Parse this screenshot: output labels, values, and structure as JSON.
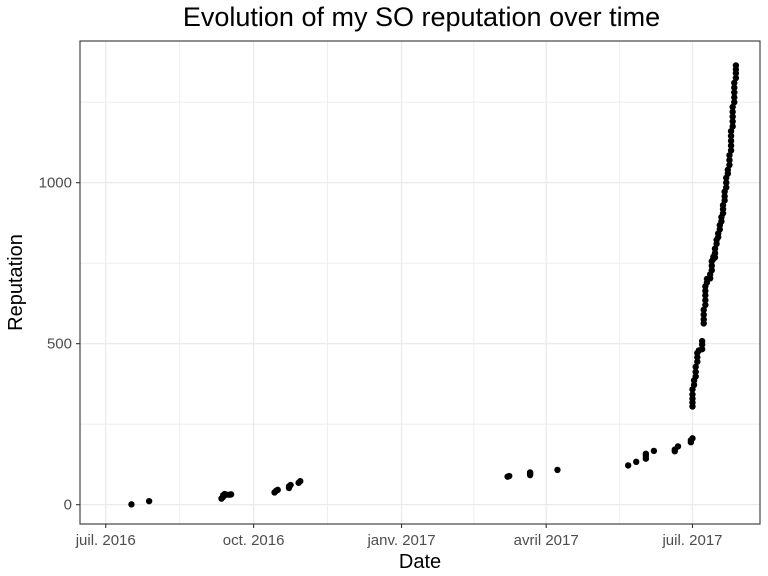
{
  "chart_data": {
    "type": "scatter",
    "title": "Evolution of my SO reputation over time",
    "xlabel": "Date",
    "ylabel": "Reputation",
    "x_axis_type": "date",
    "xlim": [
      "2016-06-15",
      "2017-08-12"
    ],
    "ylim": [
      -60,
      1440
    ],
    "x_ticks": [
      {
        "date": "2016-07-01",
        "label": "juil. 2016"
      },
      {
        "date": "2016-10-01",
        "label": "oct. 2016"
      },
      {
        "date": "2017-01-01",
        "label": "janv. 2017"
      },
      {
        "date": "2017-04-01",
        "label": "avril 2017"
      },
      {
        "date": "2017-07-01",
        "label": "juil. 2017"
      }
    ],
    "y_ticks": [
      {
        "value": 0,
        "label": "0"
      },
      {
        "value": 500,
        "label": "500"
      },
      {
        "value": 1000,
        "label": "1000"
      }
    ],
    "grid": true,
    "marker_color": "#000000",
    "grid_color": "#ebebeb",
    "points": [
      {
        "date": "2016-07-17",
        "y": 1
      },
      {
        "date": "2016-07-28",
        "y": 11
      },
      {
        "date": "2016-09-11",
        "y": 19
      },
      {
        "date": "2016-09-12",
        "y": 24
      },
      {
        "date": "2016-09-12",
        "y": 29
      },
      {
        "date": "2016-09-13",
        "y": 33
      },
      {
        "date": "2016-09-14",
        "y": 31
      },
      {
        "date": "2016-09-16",
        "y": 31
      },
      {
        "date": "2016-09-17",
        "y": 32
      },
      {
        "date": "2016-10-14",
        "y": 38
      },
      {
        "date": "2016-10-15",
        "y": 43
      },
      {
        "date": "2016-10-16",
        "y": 46
      },
      {
        "date": "2016-10-23",
        "y": 52
      },
      {
        "date": "2016-10-23",
        "y": 57
      },
      {
        "date": "2016-10-24",
        "y": 61
      },
      {
        "date": "2016-10-29",
        "y": 68
      },
      {
        "date": "2016-10-30",
        "y": 73
      },
      {
        "date": "2017-03-08",
        "y": 87
      },
      {
        "date": "2017-03-09",
        "y": 89
      },
      {
        "date": "2017-03-22",
        "y": 92
      },
      {
        "date": "2017-03-22",
        "y": 97
      },
      {
        "date": "2017-03-22",
        "y": 100
      },
      {
        "date": "2017-04-08",
        "y": 108
      },
      {
        "date": "2017-05-22",
        "y": 122
      },
      {
        "date": "2017-05-27",
        "y": 133
      },
      {
        "date": "2017-06-02",
        "y": 143
      },
      {
        "date": "2017-06-02",
        "y": 152
      },
      {
        "date": "2017-06-02",
        "y": 158
      },
      {
        "date": "2017-06-07",
        "y": 167
      },
      {
        "date": "2017-06-20",
        "y": 166
      },
      {
        "date": "2017-06-20",
        "y": 171
      },
      {
        "date": "2017-06-22",
        "y": 181
      },
      {
        "date": "2017-06-30",
        "y": 194
      },
      {
        "date": "2017-06-30",
        "y": 200
      },
      {
        "date": "2017-07-01",
        "y": 206
      },
      {
        "date": "2017-07-01",
        "y": 305
      },
      {
        "date": "2017-07-01",
        "y": 317
      },
      {
        "date": "2017-07-01",
        "y": 329
      },
      {
        "date": "2017-07-01",
        "y": 342
      },
      {
        "date": "2017-07-01",
        "y": 358
      },
      {
        "date": "2017-07-02",
        "y": 372
      },
      {
        "date": "2017-07-02",
        "y": 386
      },
      {
        "date": "2017-07-03",
        "y": 398
      },
      {
        "date": "2017-07-03",
        "y": 412
      },
      {
        "date": "2017-07-03",
        "y": 428
      },
      {
        "date": "2017-07-04",
        "y": 444
      },
      {
        "date": "2017-07-04",
        "y": 458
      },
      {
        "date": "2017-07-04",
        "y": 471
      },
      {
        "date": "2017-07-05",
        "y": 479
      },
      {
        "date": "2017-07-07",
        "y": 483
      },
      {
        "date": "2017-07-07",
        "y": 497
      },
      {
        "date": "2017-07-07",
        "y": 508
      },
      {
        "date": "2017-07-08",
        "y": 563
      },
      {
        "date": "2017-07-08",
        "y": 575
      },
      {
        "date": "2017-07-08",
        "y": 590
      },
      {
        "date": "2017-07-08",
        "y": 605
      },
      {
        "date": "2017-07-09",
        "y": 620
      },
      {
        "date": "2017-07-09",
        "y": 635
      },
      {
        "date": "2017-07-09",
        "y": 650
      },
      {
        "date": "2017-07-09",
        "y": 664
      },
      {
        "date": "2017-07-09",
        "y": 678
      },
      {
        "date": "2017-07-10",
        "y": 690
      },
      {
        "date": "2017-07-10",
        "y": 701
      },
      {
        "date": "2017-07-12",
        "y": 703
      },
      {
        "date": "2017-07-12",
        "y": 715
      },
      {
        "date": "2017-07-13",
        "y": 728
      },
      {
        "date": "2017-07-13",
        "y": 742
      },
      {
        "date": "2017-07-13",
        "y": 756
      },
      {
        "date": "2017-07-14",
        "y": 763
      },
      {
        "date": "2017-07-14",
        "y": 770
      },
      {
        "date": "2017-07-15",
        "y": 768
      },
      {
        "date": "2017-07-15",
        "y": 781
      },
      {
        "date": "2017-07-15",
        "y": 795
      },
      {
        "date": "2017-07-16",
        "y": 810
      },
      {
        "date": "2017-07-16",
        "y": 822
      },
      {
        "date": "2017-07-17",
        "y": 831
      },
      {
        "date": "2017-07-17",
        "y": 842
      },
      {
        "date": "2017-07-18",
        "y": 855
      },
      {
        "date": "2017-07-18",
        "y": 868
      },
      {
        "date": "2017-07-19",
        "y": 880
      },
      {
        "date": "2017-07-19",
        "y": 893
      },
      {
        "date": "2017-07-20",
        "y": 905
      },
      {
        "date": "2017-07-20",
        "y": 918
      },
      {
        "date": "2017-07-20",
        "y": 930
      },
      {
        "date": "2017-07-21",
        "y": 945
      },
      {
        "date": "2017-07-21",
        "y": 958
      },
      {
        "date": "2017-07-21",
        "y": 972
      },
      {
        "date": "2017-07-22",
        "y": 985
      },
      {
        "date": "2017-07-22",
        "y": 1000
      },
      {
        "date": "2017-07-22",
        "y": 1015
      },
      {
        "date": "2017-07-23",
        "y": 1028
      },
      {
        "date": "2017-07-23",
        "y": 1040
      },
      {
        "date": "2017-07-24",
        "y": 1055
      },
      {
        "date": "2017-07-24",
        "y": 1070
      },
      {
        "date": "2017-07-24",
        "y": 1085
      },
      {
        "date": "2017-07-25",
        "y": 1100
      },
      {
        "date": "2017-07-25",
        "y": 1115
      },
      {
        "date": "2017-07-25",
        "y": 1130
      },
      {
        "date": "2017-07-25",
        "y": 1145
      },
      {
        "date": "2017-07-25",
        "y": 1160
      },
      {
        "date": "2017-07-26",
        "y": 1175
      },
      {
        "date": "2017-07-26",
        "y": 1190
      },
      {
        "date": "2017-07-26",
        "y": 1205
      },
      {
        "date": "2017-07-26",
        "y": 1220
      },
      {
        "date": "2017-07-26",
        "y": 1235
      },
      {
        "date": "2017-07-27",
        "y": 1250
      },
      {
        "date": "2017-07-27",
        "y": 1265
      },
      {
        "date": "2017-07-27",
        "y": 1280
      },
      {
        "date": "2017-07-27",
        "y": 1295
      },
      {
        "date": "2017-07-27",
        "y": 1310
      },
      {
        "date": "2017-07-28",
        "y": 1325
      },
      {
        "date": "2017-07-28",
        "y": 1340
      },
      {
        "date": "2017-07-28",
        "y": 1352
      },
      {
        "date": "2017-07-28",
        "y": 1364
      }
    ]
  }
}
